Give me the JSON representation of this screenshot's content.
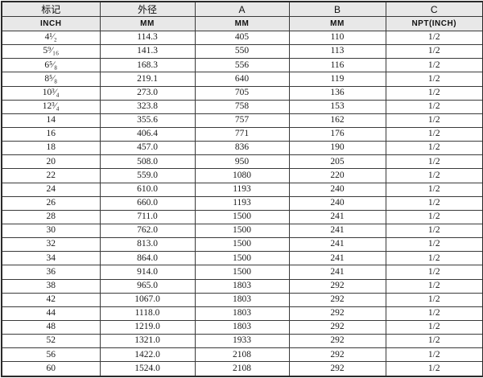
{
  "table": {
    "headers_row1": [
      "标记",
      "外径",
      "A",
      "B",
      "C"
    ],
    "headers_row2": [
      "INCH",
      "MM",
      "MM",
      "MM",
      "NPT(INCH)"
    ],
    "columns_semantic": [
      "mark-inch",
      "outer-diameter-mm",
      "dimension-a-mm",
      "dimension-b-mm",
      "dimension-c-npt"
    ],
    "rows": [
      [
        "4¹⁄₂",
        "114.3",
        "405",
        "110",
        "1/2"
      ],
      [
        "5⁹⁄₁₆",
        "141.3",
        "550",
        "113",
        "1/2"
      ],
      [
        "6⁵⁄₈",
        "168.3",
        "556",
        "116",
        "1/2"
      ],
      [
        "8⁵⁄₈",
        "219.1",
        "640",
        "119",
        "1/2"
      ],
      [
        "10³⁄₄",
        "273.0",
        "705",
        "136",
        "1/2"
      ],
      [
        "12³⁄₄",
        "323.8",
        "758",
        "153",
        "1/2"
      ],
      [
        "14",
        "355.6",
        "757",
        "162",
        "1/2"
      ],
      [
        "16",
        "406.4",
        "771",
        "176",
        "1/2"
      ],
      [
        "18",
        "457.0",
        "836",
        "190",
        "1/2"
      ],
      [
        "20",
        "508.0",
        "950",
        "205",
        "1/2"
      ],
      [
        "22",
        "559.0",
        "1080",
        "220",
        "1/2"
      ],
      [
        "24",
        "610.0",
        "1193",
        "240",
        "1/2"
      ],
      [
        "26",
        "660.0",
        "1193",
        "240",
        "1/2"
      ],
      [
        "28",
        "711.0",
        "1500",
        "241",
        "1/2"
      ],
      [
        "30",
        "762.0",
        "1500",
        "241",
        "1/2"
      ],
      [
        "32",
        "813.0",
        "1500",
        "241",
        "1/2"
      ],
      [
        "34",
        "864.0",
        "1500",
        "241",
        "1/2"
      ],
      [
        "36",
        "914.0",
        "1500",
        "241",
        "1/2"
      ],
      [
        "38",
        "965.0",
        "1803",
        "292",
        "1/2"
      ],
      [
        "42",
        "1067.0",
        "1803",
        "292",
        "1/2"
      ],
      [
        "44",
        "1118.0",
        "1803",
        "292",
        "1/2"
      ],
      [
        "48",
        "1219.0",
        "1803",
        "292",
        "1/2"
      ],
      [
        "52",
        "1321.0",
        "1933",
        "292",
        "1/2"
      ],
      [
        "56",
        "1422.0",
        "2108",
        "292",
        "1/2"
      ],
      [
        "60",
        "1524.0",
        "2108",
        "292",
        "1/2"
      ]
    ],
    "colors": {
      "header_bg": "#e8e8e8",
      "border": "#3a3a3a",
      "text": "#1a1a1a"
    }
  }
}
